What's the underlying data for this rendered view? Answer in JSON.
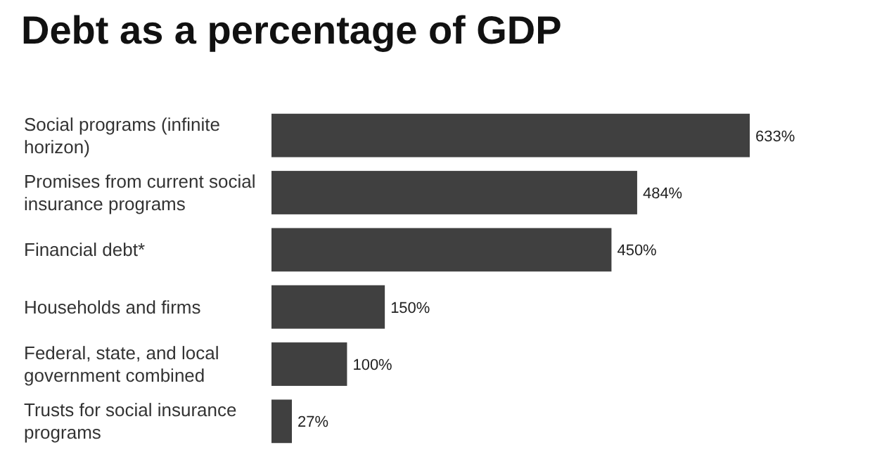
{
  "chart_data": {
    "type": "bar",
    "orientation": "horizontal",
    "title": "Debt as a percentage of GDP",
    "categories": [
      "Social programs (infinite horizon)",
      "Promises from current social insurance programs",
      "Financial debt*",
      "Households and firms",
      "Federal, state, and local government combined",
      "Trusts for social insurance programs"
    ],
    "values": [
      633,
      484,
      450,
      150,
      100,
      27
    ],
    "value_labels": [
      "633%",
      "484%",
      "450%",
      "150%",
      "100%",
      "27%"
    ],
    "color": "#404040"
  }
}
